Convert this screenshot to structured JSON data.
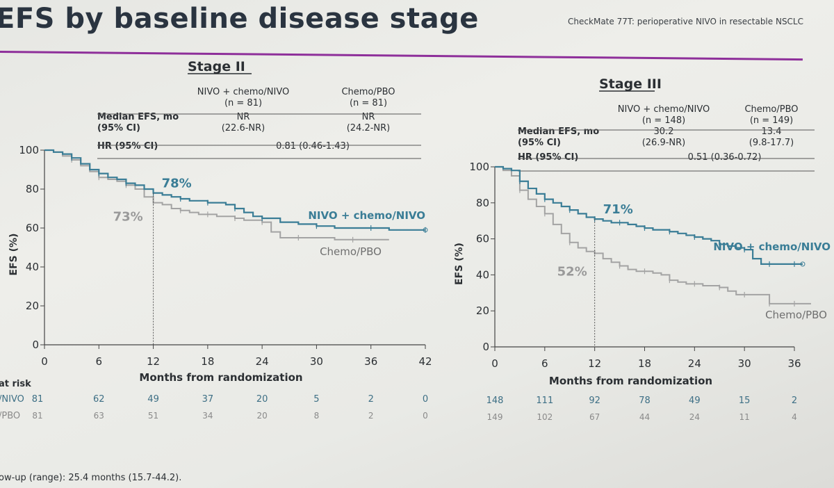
{
  "header": {
    "title": "EFS by baseline disease stage",
    "subtitle": "CheckMate 77T: perioperative NIVO in resectable NSCLC"
  },
  "footnote": "ow-up (range): 25.4 months (15.7-44.2).",
  "colors": {
    "nivo": "#3a7d96",
    "chemo": "#a3a3a3",
    "accent": "#8e2f9a",
    "text": "#2b2f33"
  },
  "chart_data": [
    {
      "type": "line",
      "title": "Stage II",
      "xlabel": "Months from randomization",
      "ylabel": "EFS (%)",
      "xlim": [
        0,
        42
      ],
      "ylim": [
        0,
        100
      ],
      "xticks": [
        0,
        6,
        12,
        18,
        24,
        30,
        36,
        42
      ],
      "yticks": [
        0,
        20,
        40,
        60,
        80,
        100
      ],
      "table": {
        "col_headers": [
          [
            "NIVO + chemo/NIVO",
            "(n = 81)"
          ],
          [
            "Chemo/PBO",
            "(n = 81)"
          ]
        ],
        "median_label": [
          "Median EFS, mo",
          "(95% CI)"
        ],
        "median_values": [
          [
            "NR",
            "(22.6-NR)"
          ],
          [
            "NR",
            "(24.2-NR)"
          ]
        ],
        "hr_label": "HR (95% CI)",
        "hr_value": "0.81 (0.46-1.43)"
      },
      "annotations": {
        "x": 12,
        "nivo_value": 78,
        "nivo_text": "78%",
        "chemo_value": 73,
        "chemo_text": "73%"
      },
      "series": [
        {
          "name": "NIVO + chemo/NIVO",
          "color": "#3a7d96",
          "x": [
            0,
            1,
            2,
            3,
            4,
            5,
            6,
            7,
            8,
            9,
            10,
            11,
            12,
            13,
            14,
            15,
            16,
            17,
            18,
            19,
            20,
            21,
            22,
            23,
            24,
            26,
            28,
            30,
            32,
            34,
            36,
            38,
            40,
            42
          ],
          "y": [
            100,
            99,
            98,
            96,
            93,
            90,
            88,
            86,
            85,
            83,
            82,
            80,
            78,
            77,
            76,
            75,
            74,
            74,
            73,
            73,
            72,
            70,
            68,
            66,
            65,
            63,
            62,
            61,
            60,
            60,
            60,
            59,
            59,
            59
          ]
        },
        {
          "name": "Chemo/PBO",
          "color": "#a3a3a3",
          "x": [
            0,
            1,
            2,
            3,
            4,
            5,
            6,
            7,
            8,
            9,
            10,
            11,
            12,
            13,
            14,
            15,
            16,
            17,
            18,
            19,
            20,
            21,
            22,
            23,
            24,
            25,
            26,
            28,
            30,
            32,
            34,
            36,
            38
          ],
          "y": [
            100,
            99,
            97,
            95,
            92,
            89,
            86,
            85,
            84,
            82,
            80,
            76,
            73,
            72,
            70,
            69,
            68,
            67,
            67,
            66,
            66,
            65,
            64,
            64,
            63,
            58,
            55,
            55,
            55,
            54,
            54,
            54,
            54
          ]
        }
      ],
      "legend": [
        {
          "text": "NIVO + chemo/NIVO",
          "series": 0
        },
        {
          "text": "Chemo/PBO",
          "series": 1
        }
      ],
      "at_risk": {
        "label": "at risk",
        "rows": [
          {
            "label": "/NIVO",
            "values": [
              81,
              62,
              49,
              37,
              20,
              5,
              2,
              0
            ]
          },
          {
            "label": "/PBO",
            "values": [
              81,
              63,
              51,
              34,
              20,
              8,
              2,
              0
            ]
          }
        ]
      }
    },
    {
      "type": "line",
      "title": "Stage III",
      "xlabel": "Months from randomization",
      "ylabel": "EFS (%)",
      "xlim": [
        0,
        36
      ],
      "ylim": [
        0,
        100
      ],
      "xticks": [
        0,
        6,
        12,
        18,
        24,
        30,
        36
      ],
      "yticks": [
        0,
        20,
        40,
        60,
        80,
        100
      ],
      "table": {
        "col_headers": [
          [
            "NIVO + chemo/NIVO",
            "(n = 148)"
          ],
          [
            "Chemo/PBO",
            "(n = 149)"
          ]
        ],
        "median_label": [
          "Median EFS, mo",
          "(95% CI)"
        ],
        "median_values": [
          [
            "30.2",
            "(26.9-NR)"
          ],
          [
            "13.4",
            "(9.8-17.7)"
          ]
        ],
        "hr_label": "HR (95% CI)",
        "hr_value": "0.51 (0.36-0.72)"
      },
      "annotations": {
        "x": 12,
        "nivo_value": 71,
        "nivo_text": "71%",
        "chemo_value": 52,
        "chemo_text": "52%"
      },
      "series": [
        {
          "name": "NIVO + chemo/NIVO",
          "color": "#3a7d96",
          "x": [
            0,
            1,
            2,
            3,
            4,
            5,
            6,
            7,
            8,
            9,
            10,
            11,
            12,
            13,
            14,
            15,
            16,
            17,
            18,
            19,
            20,
            21,
            22,
            23,
            24,
            25,
            26,
            27,
            28,
            29,
            30,
            31,
            32,
            33,
            34,
            35,
            36,
            37
          ],
          "y": [
            100,
            99,
            98,
            92,
            88,
            85,
            82,
            80,
            78,
            76,
            74,
            72,
            71,
            70,
            69,
            69,
            68,
            67,
            66,
            65,
            65,
            64,
            63,
            62,
            61,
            60,
            59,
            57,
            56,
            55,
            54,
            49,
            46,
            46,
            46,
            46,
            46,
            46
          ]
        },
        {
          "name": "Chemo/PBO",
          "color": "#a3a3a3",
          "x": [
            0,
            1,
            2,
            3,
            4,
            5,
            6,
            7,
            8,
            9,
            10,
            11,
            12,
            13,
            14,
            15,
            16,
            17,
            18,
            19,
            20,
            21,
            22,
            23,
            24,
            25,
            26,
            27,
            28,
            29,
            30,
            31,
            32,
            33,
            34,
            35,
            36,
            37,
            38
          ],
          "y": [
            100,
            98,
            95,
            87,
            82,
            78,
            74,
            68,
            63,
            58,
            55,
            53,
            52,
            49,
            47,
            45,
            43,
            42,
            42,
            41,
            40,
            37,
            36,
            35,
            35,
            34,
            34,
            33,
            31,
            29,
            29,
            29,
            29,
            24,
            24,
            24,
            24,
            24,
            24
          ]
        }
      ],
      "legend": [
        {
          "text": "NIVO + chemo/NIVO",
          "series": 0
        },
        {
          "text": "Chemo/PBO",
          "series": 1
        }
      ],
      "at_risk": {
        "label": "",
        "rows": [
          {
            "label": "",
            "values": [
              148,
              111,
              92,
              78,
              49,
              15,
              2
            ]
          },
          {
            "label": "",
            "values": [
              149,
              102,
              67,
              44,
              24,
              11,
              4
            ]
          }
        ]
      }
    }
  ]
}
